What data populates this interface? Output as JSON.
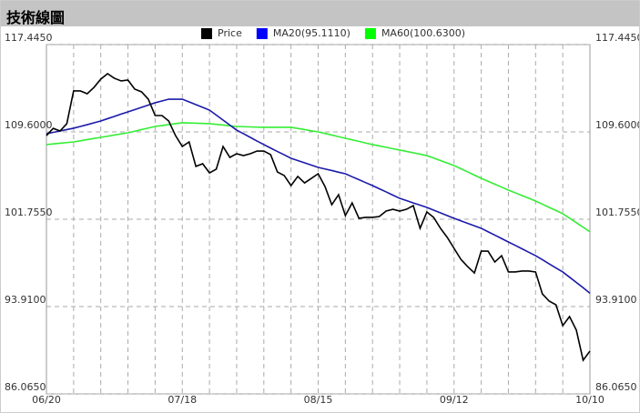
{
  "chart_data": {
    "type": "line",
    "title": "技術線圖",
    "categories": [
      "06/20",
      null,
      null,
      null,
      null,
      null,
      null,
      null,
      null,
      null,
      null,
      null,
      null,
      null,
      null,
      null,
      null,
      null,
      null,
      null,
      "07/18",
      null,
      null,
      null,
      null,
      null,
      null,
      null,
      null,
      null,
      null,
      null,
      null,
      null,
      null,
      null,
      null,
      null,
      null,
      null,
      "08/15",
      null,
      null,
      null,
      null,
      null,
      null,
      null,
      null,
      null,
      null,
      null,
      null,
      null,
      null,
      null,
      null,
      null,
      null,
      null,
      "09/12",
      null,
      null,
      null,
      null,
      null,
      null,
      null,
      null,
      null,
      null,
      null,
      null,
      null,
      null,
      null,
      null,
      null,
      null,
      null,
      "10/10"
    ],
    "series": [
      {
        "name": "Price",
        "color": "#000000",
        "values": [
          109.27,
          109.92,
          109.68,
          110.34,
          113.28,
          113.28,
          113.03,
          113.6,
          114.34,
          114.83,
          114.42,
          114.18,
          114.26,
          113.44,
          113.2,
          112.54,
          111.07,
          111.07,
          110.58,
          109.27,
          108.29,
          108.7,
          106.5,
          106.74,
          105.92,
          106.25,
          108.29,
          107.31,
          107.64,
          107.47,
          107.64,
          107.88,
          107.88,
          107.56,
          106.0,
          105.68,
          104.78,
          105.6,
          105.02,
          105.43,
          105.84,
          104.7,
          103.06,
          103.96,
          102.08,
          103.22,
          101.84,
          101.92,
          101.92,
          102.0,
          102.49,
          102.65,
          102.49,
          102.65,
          102.98,
          100.94,
          102.41,
          101.92,
          100.94,
          100.12,
          99.14,
          98.16,
          97.5,
          96.93,
          98.89,
          98.89,
          97.91,
          98.48,
          97.02,
          97.02,
          97.1,
          97.1,
          97.02,
          95.05,
          94.4,
          94.07,
          92.2,
          93.01,
          91.79,
          89.09,
          89.91
        ]
      },
      {
        "name": "MA20(95.1110)",
        "color": "#0000ff",
        "values": [
          109.44,
          109.56,
          109.68,
          109.81,
          109.93,
          110.09,
          110.25,
          110.42,
          110.58,
          110.79,
          110.99,
          111.2,
          111.4,
          111.6,
          111.81,
          112.01,
          112.22,
          112.38,
          112.54,
          112.54,
          112.54,
          112.3,
          112.05,
          111.81,
          111.56,
          111.11,
          110.66,
          110.21,
          109.76,
          109.44,
          109.11,
          108.78,
          108.46,
          108.15,
          107.84,
          107.54,
          107.23,
          107.03,
          106.82,
          106.62,
          106.41,
          106.27,
          106.13,
          105.98,
          105.84,
          105.57,
          105.31,
          105.04,
          104.78,
          104.49,
          104.21,
          103.92,
          103.63,
          103.43,
          103.22,
          103.02,
          102.82,
          102.57,
          102.33,
          102.08,
          101.84,
          101.61,
          101.39,
          101.16,
          100.94,
          100.63,
          100.33,
          100.02,
          99.71,
          99.41,
          99.1,
          98.79,
          98.48,
          98.12,
          97.75,
          97.38,
          97.02,
          96.55,
          96.08,
          95.61,
          95.11
        ]
      },
      {
        "name": "MA60(100.6300)",
        "color": "#00ff00",
        "values": [
          108.46,
          108.52,
          108.58,
          108.64,
          108.7,
          108.8,
          108.91,
          109.01,
          109.11,
          109.21,
          109.32,
          109.42,
          109.52,
          109.66,
          109.81,
          109.95,
          110.09,
          110.17,
          110.26,
          110.34,
          110.42,
          110.4,
          110.38,
          110.36,
          110.34,
          110.28,
          110.22,
          110.15,
          110.09,
          110.07,
          110.05,
          110.03,
          110.01,
          110.01,
          110.01,
          110.01,
          110.01,
          109.91,
          109.81,
          109.7,
          109.6,
          109.46,
          109.32,
          109.17,
          109.03,
          108.89,
          108.75,
          108.6,
          108.46,
          108.34,
          108.22,
          108.09,
          107.97,
          107.85,
          107.72,
          107.6,
          107.47,
          107.25,
          107.03,
          106.8,
          106.58,
          106.29,
          106.01,
          105.72,
          105.43,
          105.17,
          104.9,
          104.64,
          104.37,
          104.13,
          103.88,
          103.64,
          103.39,
          103.11,
          102.82,
          102.54,
          102.25,
          101.85,
          101.44,
          101.04,
          100.63
        ]
      }
    ],
    "ylim": [
      86.065,
      117.445
    ],
    "yticks": [
      {
        "value": 86.065,
        "label": "86.0650"
      },
      {
        "value": 93.91,
        "label": "93.9100"
      },
      {
        "value": 101.755,
        "label": "101.7550"
      },
      {
        "value": 109.6,
        "label": "109.6000"
      },
      {
        "value": 117.445,
        "label": "117.4450"
      }
    ],
    "grid": true
  }
}
